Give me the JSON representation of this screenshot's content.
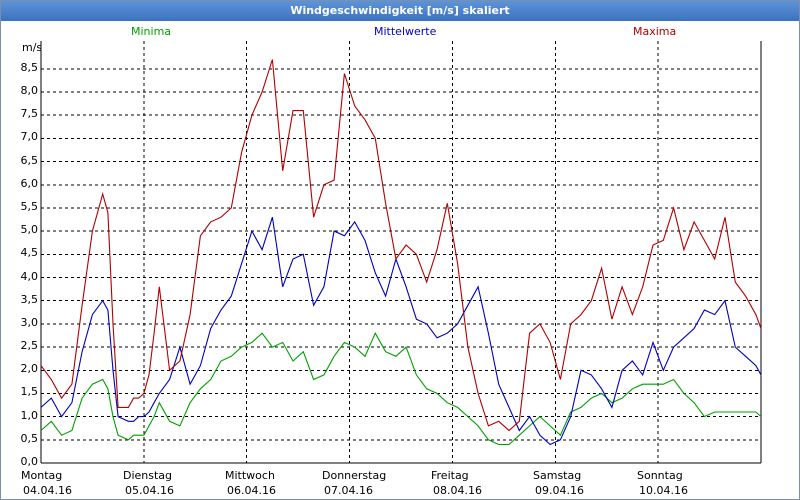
{
  "window": {
    "title": "Windgeschwindigkeit [m/s] skaliert"
  },
  "colors": {
    "min": "#00a000",
    "mean": "#0000c0",
    "max": "#b00000",
    "grid": "#000000"
  },
  "chart_data": {
    "type": "line",
    "title": "Windgeschwindigkeit [m/s] skaliert",
    "ylabel": "m/s",
    "xlabel": "",
    "ylim": [
      0,
      9.1
    ],
    "xlim": [
      0,
      7
    ],
    "grid": true,
    "legend_placement": "top",
    "y_ticks": [
      "0,0",
      "0,5",
      "1,0",
      "1,5",
      "2,0",
      "2,5",
      "3,0",
      "3,5",
      "4,0",
      "4,5",
      "5,0",
      "5,5",
      "6,0",
      "6,5",
      "7,0",
      "7,5",
      "8,0",
      "8,5"
    ],
    "categories": [
      {
        "day": "Montag",
        "date": "04.04.16"
      },
      {
        "day": "Dienstag",
        "date": "05.04.16"
      },
      {
        "day": "Mittwoch",
        "date": "06.04.16"
      },
      {
        "day": "Donnerstag",
        "date": "07.04.16"
      },
      {
        "day": "Freitag",
        "date": "08.04.16"
      },
      {
        "day": "Samstag",
        "date": "09.04.16"
      },
      {
        "day": "Sonntag",
        "date": "10.04.16"
      }
    ],
    "series": [
      {
        "name": "Minima",
        "key": "min",
        "x": [
          0,
          0.1,
          0.2,
          0.3,
          0.4,
          0.5,
          0.6,
          0.65,
          0.7,
          0.75,
          0.85,
          0.9,
          0.95,
          1.0,
          1.05,
          1.1,
          1.15,
          1.25,
          1.35,
          1.45,
          1.55,
          1.65,
          1.75,
          1.85,
          1.95,
          2.05,
          2.15,
          2.25,
          2.35,
          2.45,
          2.55,
          2.65,
          2.75,
          2.85,
          2.95,
          3.05,
          3.15,
          3.25,
          3.35,
          3.45,
          3.55,
          3.65,
          3.75,
          3.85,
          3.95,
          4.05,
          4.15,
          4.25,
          4.35,
          4.45,
          4.55,
          4.65,
          4.75,
          4.85,
          4.95,
          5.05,
          5.15,
          5.25,
          5.35,
          5.45,
          5.55,
          5.65,
          5.75,
          5.85,
          5.95,
          6.05,
          6.15,
          6.25,
          6.35,
          6.45,
          6.55,
          6.65,
          6.75,
          6.85,
          6.95,
          7.0
        ],
        "y": [
          0.7,
          0.9,
          0.6,
          0.7,
          1.4,
          1.7,
          1.8,
          1.6,
          1.0,
          0.6,
          0.5,
          0.6,
          0.6,
          0.6,
          0.8,
          1.0,
          1.3,
          0.9,
          0.8,
          1.3,
          1.6,
          1.8,
          2.2,
          2.3,
          2.5,
          2.6,
          2.8,
          2.5,
          2.6,
          2.2,
          2.4,
          1.8,
          1.9,
          2.3,
          2.6,
          2.5,
          2.3,
          2.8,
          2.4,
          2.3,
          2.5,
          1.9,
          1.6,
          1.5,
          1.3,
          1.2,
          1.0,
          0.8,
          0.5,
          0.4,
          0.4,
          0.6,
          0.8,
          1.0,
          0.8,
          0.6,
          1.1,
          1.2,
          1.4,
          1.5,
          1.3,
          1.4,
          1.6,
          1.7,
          1.7,
          1.7,
          1.8,
          1.5,
          1.3,
          1.0,
          1.1,
          1.1,
          1.1,
          1.1,
          1.1,
          1.0
        ]
      },
      {
        "name": "Mittelwerte",
        "key": "mean",
        "x": [
          0,
          0.1,
          0.2,
          0.3,
          0.4,
          0.5,
          0.6,
          0.65,
          0.7,
          0.75,
          0.85,
          0.9,
          0.95,
          1.0,
          1.05,
          1.1,
          1.15,
          1.25,
          1.35,
          1.45,
          1.55,
          1.65,
          1.75,
          1.85,
          1.95,
          2.05,
          2.15,
          2.25,
          2.35,
          2.45,
          2.55,
          2.65,
          2.75,
          2.85,
          2.95,
          3.05,
          3.15,
          3.25,
          3.35,
          3.45,
          3.55,
          3.65,
          3.75,
          3.85,
          3.95,
          4.05,
          4.15,
          4.25,
          4.35,
          4.45,
          4.55,
          4.65,
          4.75,
          4.85,
          4.95,
          5.05,
          5.15,
          5.25,
          5.35,
          5.45,
          5.55,
          5.65,
          5.75,
          5.85,
          5.95,
          6.05,
          6.15,
          6.25,
          6.35,
          6.45,
          6.55,
          6.65,
          6.75,
          6.85,
          6.95,
          7.0
        ],
        "y": [
          1.2,
          1.4,
          1.0,
          1.3,
          2.4,
          3.2,
          3.5,
          3.3,
          2.0,
          1.0,
          0.9,
          0.9,
          1.0,
          1.0,
          1.1,
          1.3,
          1.5,
          1.8,
          2.5,
          1.7,
          2.1,
          2.9,
          3.3,
          3.6,
          4.3,
          5.0,
          4.6,
          5.3,
          3.8,
          4.4,
          4.5,
          3.4,
          3.8,
          5.0,
          4.9,
          5.2,
          4.8,
          4.1,
          3.6,
          4.4,
          3.8,
          3.1,
          3.0,
          2.7,
          2.8,
          3.0,
          3.4,
          3.8,
          2.8,
          1.7,
          1.2,
          0.7,
          1.0,
          0.6,
          0.4,
          0.5,
          1.0,
          2.0,
          1.9,
          1.6,
          1.2,
          2.0,
          2.2,
          1.9,
          2.6,
          2.0,
          2.5,
          2.7,
          2.9,
          3.3,
          3.2,
          3.5,
          2.5,
          2.3,
          2.1,
          1.9
        ]
      },
      {
        "name": "Maxima",
        "key": "max",
        "x": [
          0,
          0.1,
          0.2,
          0.3,
          0.4,
          0.5,
          0.6,
          0.65,
          0.7,
          0.75,
          0.85,
          0.9,
          0.95,
          1.0,
          1.05,
          1.1,
          1.15,
          1.25,
          1.35,
          1.45,
          1.55,
          1.65,
          1.75,
          1.85,
          1.95,
          2.05,
          2.15,
          2.25,
          2.35,
          2.45,
          2.55,
          2.65,
          2.75,
          2.85,
          2.95,
          3.05,
          3.15,
          3.25,
          3.35,
          3.45,
          3.55,
          3.65,
          3.75,
          3.85,
          3.95,
          4.05,
          4.15,
          4.25,
          4.35,
          4.45,
          4.55,
          4.65,
          4.75,
          4.85,
          4.95,
          5.05,
          5.15,
          5.25,
          5.35,
          5.45,
          5.55,
          5.65,
          5.75,
          5.85,
          5.95,
          6.05,
          6.15,
          6.25,
          6.35,
          6.45,
          6.55,
          6.65,
          6.75,
          6.85,
          6.95,
          7.0
        ],
        "y": [
          2.1,
          1.8,
          1.4,
          1.7,
          3.4,
          5.0,
          5.8,
          5.4,
          3.0,
          1.2,
          1.2,
          1.4,
          1.4,
          1.5,
          1.9,
          2.8,
          3.8,
          2.0,
          2.2,
          3.2,
          4.9,
          5.2,
          5.3,
          5.5,
          6.7,
          7.5,
          8.0,
          8.7,
          6.3,
          7.6,
          7.6,
          5.3,
          6.0,
          6.1,
          8.4,
          7.7,
          7.4,
          7.0,
          5.6,
          4.4,
          4.7,
          4.5,
          3.9,
          4.6,
          5.6,
          4.3,
          2.5,
          1.5,
          0.8,
          0.9,
          0.7,
          0.9,
          2.8,
          3.0,
          2.6,
          1.8,
          3.0,
          3.2,
          3.5,
          4.2,
          3.1,
          3.8,
          3.2,
          3.8,
          4.7,
          4.8,
          5.5,
          4.6,
          5.2,
          4.8,
          4.4,
          5.3,
          3.9,
          3.6,
          3.2,
          2.9
        ]
      }
    ]
  }
}
